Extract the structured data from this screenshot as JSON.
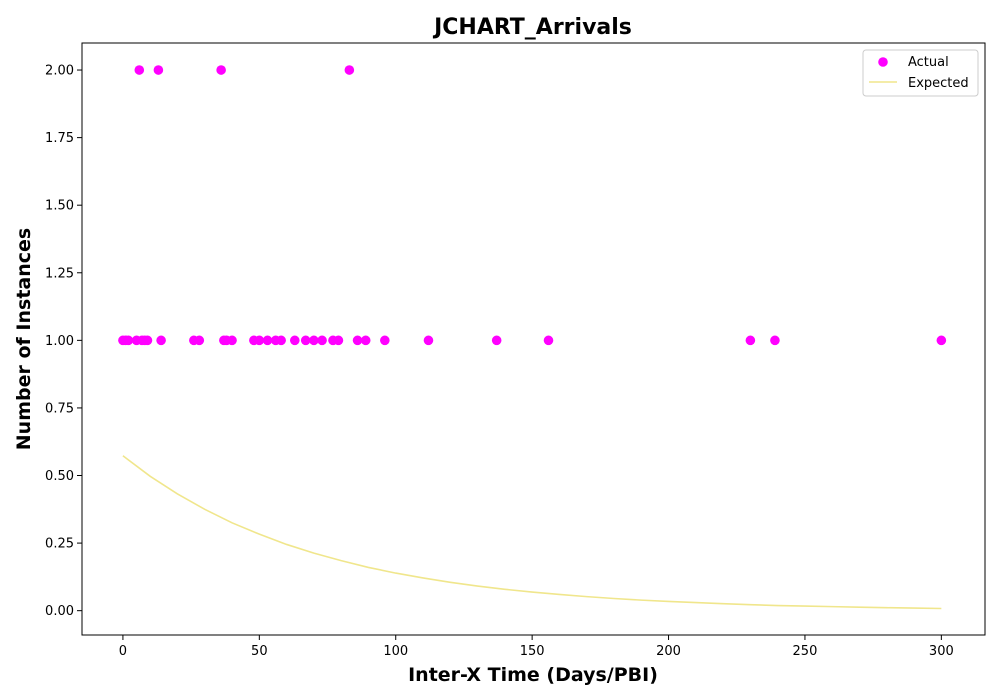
{
  "chart_data": {
    "type": "scatter",
    "title": "JCHART_Arrivals",
    "xlabel": "Inter-X Time (Days/PBI)",
    "ylabel": "Number of Instances",
    "xlim": [
      -15,
      316
    ],
    "ylim": [
      -0.09,
      2.1
    ],
    "xticks": [
      0,
      50,
      100,
      150,
      200,
      250,
      300
    ],
    "yticks": [
      0.0,
      0.25,
      0.5,
      0.75,
      1.0,
      1.25,
      1.5,
      1.75,
      2.0
    ],
    "xtick_labels": [
      "0",
      "50",
      "100",
      "150",
      "200",
      "250",
      "300"
    ],
    "ytick_labels": [
      "0.00",
      "0.25",
      "0.50",
      "0.75",
      "1.00",
      "1.25",
      "1.50",
      "1.75",
      "2.00"
    ],
    "legend": {
      "position": "top-right",
      "entries": [
        "Actual",
        "Expected"
      ]
    },
    "grid": false,
    "series": [
      {
        "name": "Actual",
        "kind": "scatter",
        "color": "#ff00ff",
        "points": [
          [
            0,
            1
          ],
          [
            1,
            1
          ],
          [
            2,
            1
          ],
          [
            5,
            1
          ],
          [
            6,
            2
          ],
          [
            7,
            1
          ],
          [
            8,
            1
          ],
          [
            9,
            1
          ],
          [
            13,
            2
          ],
          [
            14,
            1
          ],
          [
            26,
            1
          ],
          [
            28,
            1
          ],
          [
            36,
            2
          ],
          [
            37,
            1
          ],
          [
            38,
            1
          ],
          [
            40,
            1
          ],
          [
            48,
            1
          ],
          [
            50,
            1
          ],
          [
            53,
            1
          ],
          [
            56,
            1
          ],
          [
            58,
            1
          ],
          [
            63,
            1
          ],
          [
            67,
            1
          ],
          [
            70,
            1
          ],
          [
            73,
            1
          ],
          [
            77,
            1
          ],
          [
            79,
            1
          ],
          [
            83,
            2
          ],
          [
            86,
            1
          ],
          [
            89,
            1
          ],
          [
            96,
            1
          ],
          [
            112,
            1
          ],
          [
            137,
            1
          ],
          [
            156,
            1
          ],
          [
            230,
            1
          ],
          [
            239,
            1
          ],
          [
            300,
            1
          ]
        ]
      },
      {
        "name": "Expected",
        "kind": "line",
        "color": "#f0e68c",
        "x": [
          0,
          10,
          20,
          30,
          40,
          50,
          60,
          70,
          80,
          90,
          100,
          110,
          120,
          130,
          140,
          150,
          160,
          170,
          180,
          190,
          200,
          210,
          220,
          230,
          240,
          250,
          260,
          270,
          280,
          290,
          300
        ],
        "y": [
          0.573,
          0.497,
          0.432,
          0.375,
          0.325,
          0.283,
          0.245,
          0.213,
          0.185,
          0.16,
          0.139,
          0.121,
          0.105,
          0.091,
          0.079,
          0.069,
          0.06,
          0.052,
          0.045,
          0.039,
          0.034,
          0.03,
          0.026,
          0.022,
          0.019,
          0.017,
          0.015,
          0.013,
          0.011,
          0.0095,
          0.008
        ]
      }
    ]
  }
}
